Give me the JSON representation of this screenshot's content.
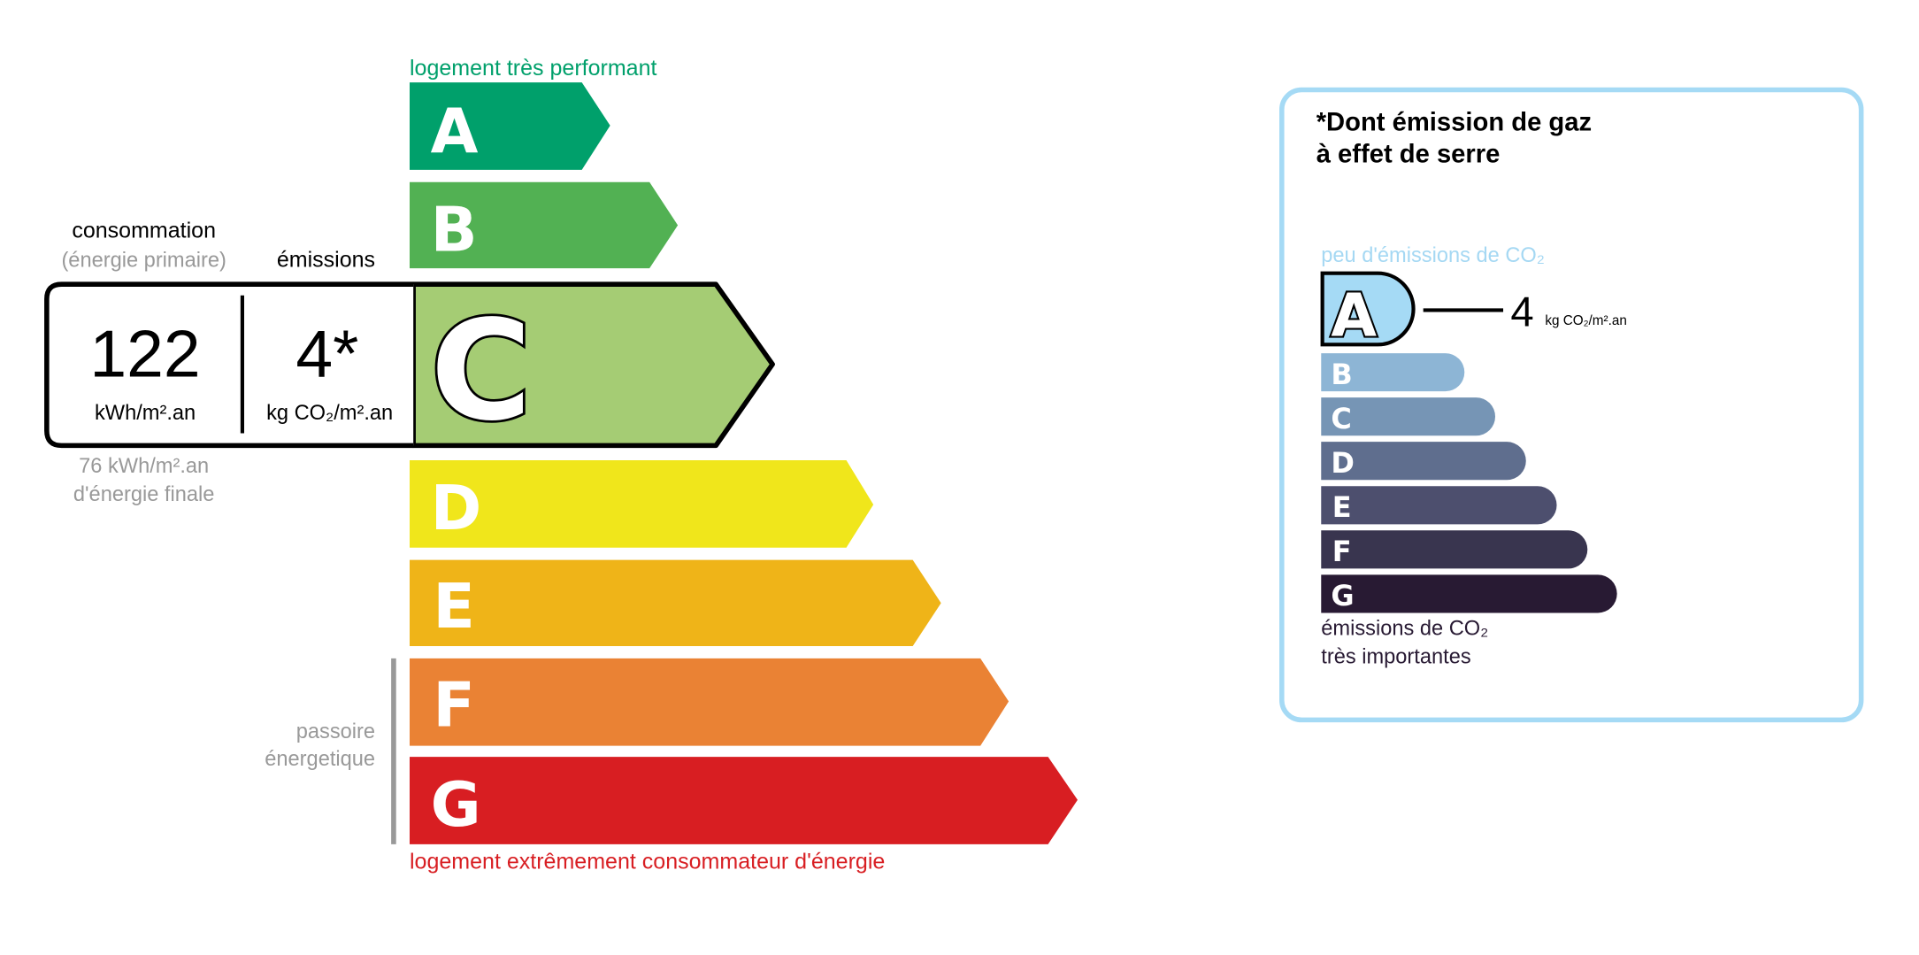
{
  "energy_scale": {
    "top_label": "logement très performant",
    "bottom_label": "logement extrêmement consommateur d'énergie",
    "passoire_label": [
      "passoire",
      "énergetique"
    ],
    "classes": [
      {
        "letter": "A",
        "color": "#00a06b"
      },
      {
        "letter": "B",
        "color": "#52b153"
      },
      {
        "letter": "C",
        "color": "#a5cc74"
      },
      {
        "letter": "D",
        "color": "#f0e61b"
      },
      {
        "letter": "E",
        "color": "#efb418"
      },
      {
        "letter": "F",
        "color": "#ea8234"
      },
      {
        "letter": "G",
        "color": "#d81e22"
      }
    ],
    "current_class": "C"
  },
  "consumption": {
    "title": "consommation",
    "subtitle": "(énergie primaire)",
    "value": "122",
    "unit": "kWh/m².an",
    "final_value": "76 kWh/m².an",
    "final_label": "d'énergie finale"
  },
  "emissions": {
    "title": "émissions",
    "value": "4*",
    "unit": "kg CO₂/m².an"
  },
  "ges_panel": {
    "title_line1": "*Dont émission de gaz",
    "title_line2": "à effet de serre",
    "top_label": "peu d'émissions de CO₂",
    "bottom_label_line1": "émissions de CO₂",
    "bottom_label_line2": "très importantes",
    "value": "4",
    "unit": "kg CO₂/m².an",
    "current_class": "A",
    "border_color": "#a5daf5",
    "classes": [
      {
        "letter": "A",
        "color": "#a5daf5"
      },
      {
        "letter": "B",
        "color": "#8db5d5"
      },
      {
        "letter": "C",
        "color": "#7695b5"
      },
      {
        "letter": "D",
        "color": "#5f6e8e"
      },
      {
        "letter": "E",
        "color": "#4d4f6e"
      },
      {
        "letter": "F",
        "color": "#39354f"
      },
      {
        "letter": "G",
        "color": "#281a33"
      }
    ]
  }
}
